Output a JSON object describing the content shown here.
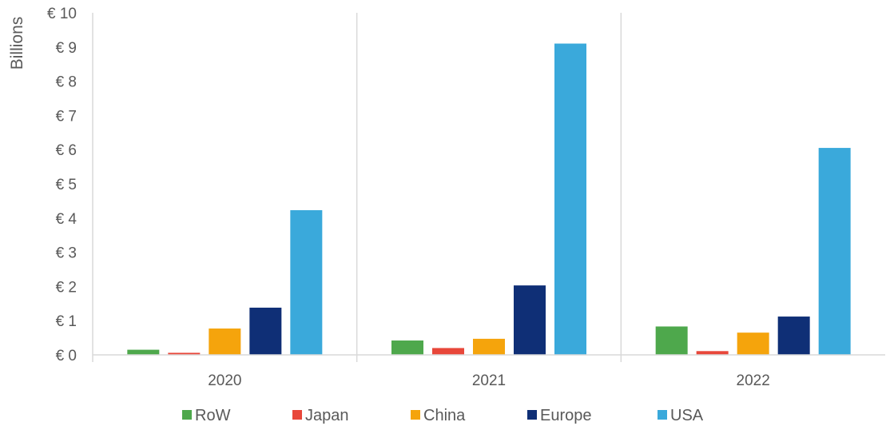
{
  "chart_data": {
    "type": "bar",
    "ylabel": "Billions",
    "ylim": [
      0,
      10
    ],
    "y_ticks": [
      0,
      1,
      2,
      3,
      4,
      5,
      6,
      7,
      8,
      9,
      10
    ],
    "y_tick_labels": [
      "€ 0",
      "€ 1",
      "€ 2",
      "€ 3",
      "€ 4",
      "€ 5",
      "€ 6",
      "€ 7",
      "€ 8",
      "€ 9",
      "€ 10"
    ],
    "categories": [
      "2020",
      "2021",
      "2022"
    ],
    "series": [
      {
        "name": "RoW",
        "color": "#4ea84c",
        "values": [
          0.15,
          0.42,
          0.83
        ]
      },
      {
        "name": "Japan",
        "color": "#e8473a",
        "values": [
          0.06,
          0.2,
          0.11
        ]
      },
      {
        "name": "China",
        "color": "#f5a40c",
        "values": [
          0.77,
          0.47,
          0.65
        ]
      },
      {
        "name": "Europe",
        "color": "#0f2f76",
        "values": [
          1.38,
          2.03,
          1.12
        ]
      },
      {
        "name": "USA",
        "color": "#3aa9db",
        "values": [
          4.23,
          9.1,
          6.05
        ]
      }
    ],
    "grid": false,
    "category_dividers": true,
    "legend_position": "bottom"
  }
}
